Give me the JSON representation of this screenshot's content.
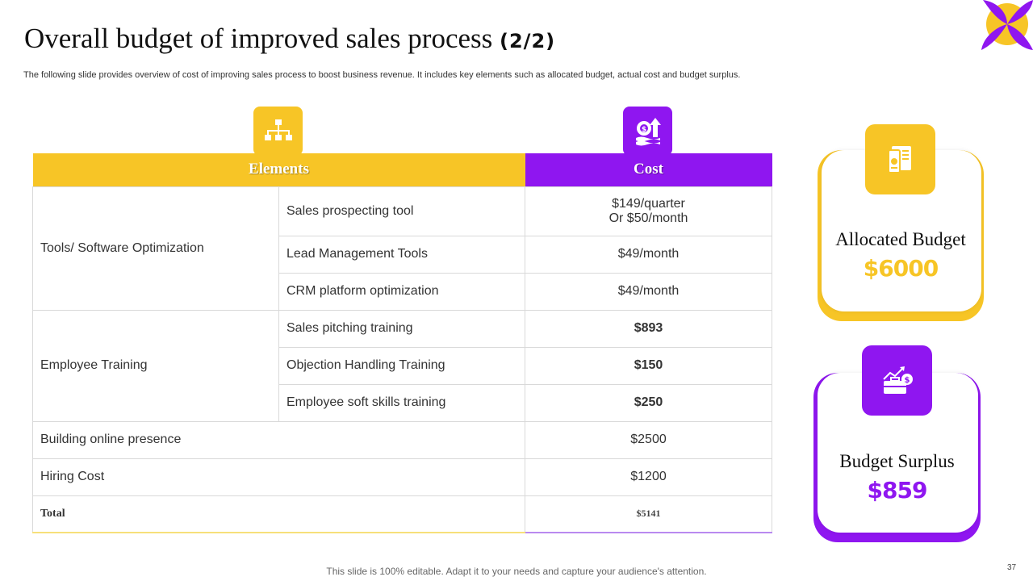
{
  "header": {
    "title": "Overall budget of improved sales process",
    "title_part": "(2/2)",
    "subtitle": "The following slide provides overview of cost of improving sales process to boost business revenue. It includes key elements such as allocated budget, actual cost and budget surplus."
  },
  "icons": {
    "logo": "four-petal-flower-logo",
    "elements_column": "hierarchy-chart-icon",
    "cost_column": "money-growth-icon",
    "allocated": "document-report-icon",
    "surplus": "briefcase-growth-icon"
  },
  "colors": {
    "yellow": "#f7c526",
    "purple": "#8f16f0"
  },
  "table": {
    "headers": {
      "elements": "Elements",
      "cost": "Cost"
    },
    "groups": [
      {
        "name": "Tools/ Software Optimization",
        "items": [
          {
            "name": "Sales prospecting tool",
            "cost": "$149/quarter",
            "cost_line2": "Or $50/month"
          },
          {
            "name": "Lead Management Tools",
            "cost": "$49/month"
          },
          {
            "name": "CRM platform optimization",
            "cost": "$49/month"
          }
        ]
      },
      {
        "name": "Employee Training",
        "items": [
          {
            "name": "Sales pitching training",
            "cost": "$893"
          },
          {
            "name": "Objection Handling Training",
            "cost": "$150"
          },
          {
            "name": "Employee soft skills training",
            "cost": "$250"
          }
        ]
      }
    ],
    "single_rows": [
      {
        "name": "Building online presence",
        "cost": "$2500"
      },
      {
        "name": "Hiring Cost",
        "cost": "$1200"
      }
    ],
    "total": {
      "label": "Total",
      "value": "$5141"
    }
  },
  "cards": {
    "allocated": {
      "label": "Allocated Budget",
      "value": "$6000"
    },
    "surplus": {
      "label": "Budget Surplus",
      "value": "$859"
    }
  },
  "footer": {
    "note": "This slide is 100% editable. Adapt it to your needs and capture your audience's attention.",
    "page_number": "37"
  }
}
